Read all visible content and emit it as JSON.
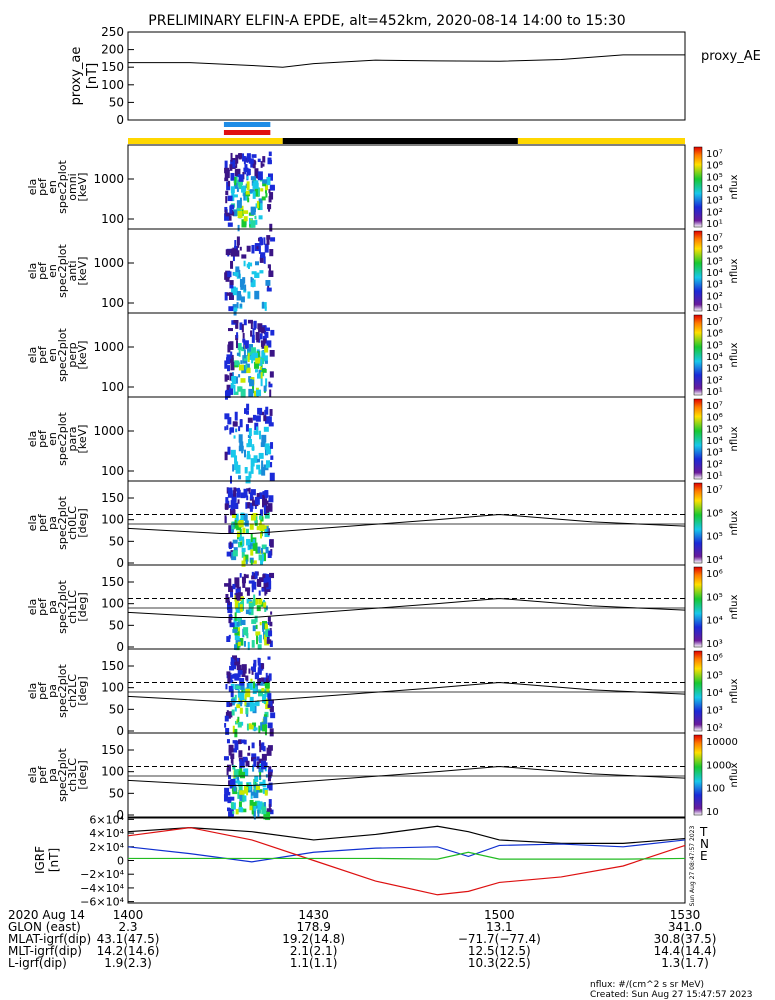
{
  "title": "PRELIMINARY ELFIN-A EPDE, alt=452km, 2020-08-14 14:00 to 15:30",
  "colors": {
    "frame": "#000000",
    "bar_yellow": "#ffd700",
    "bar_black": "#000000",
    "bar_blue": "#1e8ce6",
    "bar_red": "#e01010",
    "grf_x": "#000000",
    "grf_y": "#1030d0",
    "grf_z": "#dd1010",
    "grf_e": "#22bb22"
  },
  "chart_data": {
    "type": "multi-panel-timeseries",
    "time_range": [
      "14:00",
      "15:30"
    ],
    "x_ticks": [
      "1400",
      "1430",
      "1500",
      "1530"
    ],
    "proxy_ae": {
      "ylabel": [
        "proxy_ae",
        "[nT]"
      ],
      "legend": "proxy_AE",
      "yticks": [
        "250",
        "200",
        "150",
        "100",
        "50",
        "0"
      ],
      "ylim": [
        0,
        250
      ],
      "t_min": [
        0,
        10,
        20,
        25,
        30,
        40,
        50,
        60,
        70,
        80,
        90
      ],
      "values": [
        163,
        163,
        155,
        150,
        160,
        170,
        168,
        167,
        172,
        185,
        185
      ]
    },
    "orbit_bar": {
      "segments": [
        {
          "from": 0,
          "to": 25,
          "color": "yellow"
        },
        {
          "from": 25,
          "to": 63,
          "color": "black"
        },
        {
          "from": 63,
          "to": 90,
          "color": "yellow"
        }
      ],
      "science_zone_blue": [
        15.5,
        23
      ],
      "science_zone_red": [
        15.5,
        23
      ]
    },
    "spec_panels": [
      {
        "label": [
          "ela",
          "pef",
          "en",
          "spec2plot",
          "omni",
          "[keV]"
        ],
        "yticks": [
          "1000",
          "100"
        ],
        "cb_ticks": [
          "10⁷",
          "10⁶",
          "10⁵",
          "10⁴",
          "10³",
          "10²",
          "10¹"
        ],
        "cb_label": "nflux"
      },
      {
        "label": [
          "ela",
          "pef",
          "en",
          "spec2plot",
          "anti",
          "[keV]"
        ],
        "yticks": [
          "1000",
          "100"
        ],
        "cb_ticks": [
          "10⁷",
          "10⁶",
          "10⁵",
          "10⁴",
          "10³",
          "10²",
          "10¹"
        ],
        "cb_label": "nflux"
      },
      {
        "label": [
          "ela",
          "pef",
          "en",
          "spec2plot",
          "perp",
          "[keV]"
        ],
        "yticks": [
          "1000",
          "100"
        ],
        "cb_ticks": [
          "10⁷",
          "10⁶",
          "10⁵",
          "10⁴",
          "10³",
          "10²",
          "10¹"
        ],
        "cb_label": "nflux"
      },
      {
        "label": [
          "ela",
          "pef",
          "en",
          "spec2plot",
          "para",
          "[keV]"
        ],
        "yticks": [
          "1000",
          "100"
        ],
        "cb_ticks": [
          "10⁷",
          "10⁶",
          "10⁵",
          "10⁴",
          "10³",
          "10²",
          "10¹"
        ],
        "cb_label": "nflux"
      }
    ],
    "pa_panels": [
      {
        "label": [
          "ela",
          "pef",
          "pa",
          "spec2plot",
          "ch0LC",
          "[deg]"
        ],
        "yticks": [
          "150",
          "100",
          "50",
          "0"
        ],
        "cb_ticks": [
          "10⁷",
          "10⁶",
          "10⁵",
          "10⁴"
        ],
        "cb_label": "nflux"
      },
      {
        "label": [
          "ela",
          "pef",
          "pa",
          "spec2plot",
          "ch1LC",
          "[deg]"
        ],
        "yticks": [
          "150",
          "100",
          "50",
          "0"
        ],
        "cb_ticks": [
          "10⁶",
          "10⁵",
          "10⁴",
          "10³"
        ],
        "cb_label": "nflux"
      },
      {
        "label": [
          "ela",
          "pef",
          "pa",
          "spec2plot",
          "ch2LC",
          "[deg]"
        ],
        "yticks": [
          "150",
          "100",
          "50",
          "0"
        ],
        "cb_ticks": [
          "10⁶",
          "10⁵",
          "10⁴",
          "10³",
          "10²"
        ],
        "cb_label": "nflux"
      },
      {
        "label": [
          "ela",
          "pef",
          "pa",
          "spec2plot",
          "ch3LC",
          "[deg]"
        ],
        "yticks": [
          "150",
          "100",
          "50",
          "0"
        ],
        "cb_ticks": [
          "10000",
          "1000",
          "100",
          "10"
        ],
        "cb_label": "nflux"
      }
    ],
    "pa_curves": {
      "t_min": [
        0,
        15,
        20,
        50,
        60,
        75,
        90
      ],
      "solid": [
        80,
        68,
        68,
        100,
        112,
        95,
        85
      ],
      "dashed": 112
    },
    "grf": {
      "ylabel": [
        "IGRF",
        "[nT]"
      ],
      "yticks": [
        "6×10⁴",
        "4×10⁴",
        "2×10⁴",
        "0",
        "−2×10⁴",
        "−4×10⁴",
        "−6×10⁴"
      ],
      "ylim": [
        -60000,
        60000
      ],
      "legend": [
        "T",
        "N",
        "E"
      ],
      "stamp": "Sun Aug 27 08:47:57 2023",
      "t_min": [
        0,
        10,
        20,
        30,
        40,
        50,
        55,
        60,
        70,
        80,
        90
      ],
      "series": [
        {
          "key": "x",
          "values": [
            42000,
            48000,
            42000,
            30000,
            38000,
            50000,
            42000,
            30000,
            25000,
            25000,
            32000
          ]
        },
        {
          "key": "y",
          "values": [
            20000,
            10000,
            -2000,
            12000,
            18000,
            20000,
            6000,
            22000,
            24000,
            20000,
            30000
          ]
        },
        {
          "key": "z",
          "values": [
            36000,
            48000,
            30000,
            0,
            -30000,
            -50000,
            -45000,
            -32000,
            -24000,
            -8000,
            22000
          ]
        },
        {
          "key": "e",
          "values": [
            3000,
            3000,
            3000,
            3000,
            3000,
            2000,
            12000,
            2000,
            2000,
            2000,
            3000
          ]
        }
      ]
    }
  },
  "footer": {
    "rows": [
      {
        "label": "2020 Aug 14",
        "vals": [
          "1400",
          "1430",
          "1500",
          "1530"
        ]
      },
      {
        "label": "GLON (east)",
        "vals": [
          "2.3",
          "178.9",
          "13.1",
          "341.0"
        ]
      },
      {
        "label": "MLAT-igrf(dip)",
        "vals": [
          "43.1(47.5)",
          "19.2(14.8)",
          "−71.7(−77.4)",
          "30.8(37.5)"
        ]
      },
      {
        "label": "MLT-igrf(dip)",
        "vals": [
          "14.2(14.6)",
          "2.1(2.1)",
          "12.5(12.5)",
          "14.4(14.4)"
        ]
      },
      {
        "label": "L-igrf(dip)",
        "vals": [
          "1.9(2.3)",
          "1.1(1.1)",
          "10.3(22.5)",
          "1.3(1.7)"
        ]
      }
    ],
    "nflux_note": "nflux: #/(cm^2 s sr MeV)",
    "created": "Created: Sun Aug 27 15:47:57 2023"
  }
}
